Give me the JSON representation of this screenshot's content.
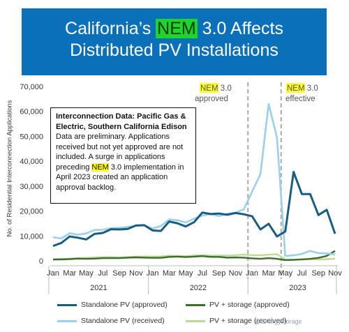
{
  "banner": {
    "line1_pre": "California’s ",
    "line1_hl": "NEM",
    "line1_post": " 3.0 Affects",
    "line2": "Distributed PV Installations"
  },
  "callout": {
    "title": "Interconnection Data: Pacific Gas & Electric, Southern California Edison",
    "body1": "Data are preliminary. Applications received but not yet approved are not included. A surge in applications preceding ",
    "body_hl": "NEM",
    "body2": " 3.0 implementation in April 2023 created an application approval backlog."
  },
  "annotations": {
    "approved_hl": "NEM",
    "approved_rest": " 3.0",
    "approved_label": "approved",
    "effective_hl": "NEM",
    "effective_rest": " 3.0",
    "effective_label": "effective"
  },
  "watermark": "@Energystorage",
  "colors": {
    "standalone_approved": "#1b5c84",
    "standalone_received": "#9bd0ea",
    "storage_approved": "#3b6e28",
    "storage_received": "#b9dc96",
    "banner": "#0b70ba",
    "highlight": "#ffff2a"
  },
  "chart_data": {
    "type": "line",
    "ylabel": "No. of Residential Interconnection Applications",
    "ylim": [
      0,
      70000
    ],
    "yticks": [
      "0",
      "10,000",
      "20,000",
      "30,000",
      "40,000",
      "50,000",
      "60,000",
      "70,000"
    ],
    "ytick_values": [
      0,
      10000,
      20000,
      30000,
      40000,
      50000,
      60000,
      70000
    ],
    "x_tick_labels": [
      "Jan",
      "Mar",
      "May",
      "Jul",
      "Sep",
      "Nov",
      "Jan",
      "Mar",
      "May",
      "Jul",
      "Sep",
      "Nov",
      "Jan",
      "Mar",
      "May",
      "Jul",
      "Sep",
      "Nov"
    ],
    "x_tick_months": [
      0,
      2,
      4,
      6,
      8,
      10,
      12,
      14,
      16,
      18,
      20,
      22,
      24,
      26,
      28,
      30,
      32,
      34
    ],
    "years": [
      "2021",
      "2022",
      "2023"
    ],
    "months": [
      "Jan 2021",
      "Feb 2021",
      "Mar 2021",
      "Apr 2021",
      "May 2021",
      "Jun 2021",
      "Jul 2021",
      "Aug 2021",
      "Sep 2021",
      "Oct 2021",
      "Nov 2021",
      "Dec 2021",
      "Jan 2022",
      "Feb 2022",
      "Mar 2022",
      "Apr 2022",
      "May 2022",
      "Jun 2022",
      "Jul 2022",
      "Aug 2022",
      "Sep 2022",
      "Oct 2022",
      "Nov 2022",
      "Dec 2022",
      "Jan 2023",
      "Feb 2023",
      "Mar 2023",
      "Apr 2023",
      "May 2023",
      "Jun 2023",
      "Jul 2023",
      "Aug 2023",
      "Sep 2023",
      "Oct 2023",
      "Nov 2023"
    ],
    "grid": false,
    "legend_placement": "bottom",
    "vlines": [
      {
        "month": "Dec 2022",
        "label": "NEM 3.0 approved"
      },
      {
        "month": "Apr 2023",
        "label": "NEM 3.0 effective"
      }
    ],
    "series": [
      {
        "name": "Standalone PV (approved)",
        "values": [
          6000,
          7200,
          9800,
          9300,
          8600,
          10800,
          11200,
          12700,
          12600,
          12800,
          14200,
          14300,
          12200,
          12000,
          15800,
          15100,
          13800,
          15500,
          19400,
          18800,
          19000,
          18500,
          19200,
          18700,
          17900,
          12600,
          14900,
          9800,
          11800,
          35700,
          26800,
          26800,
          18400,
          20500,
          10900
        ]
      },
      {
        "name": "Standalone PV (received)",
        "values": [
          9500,
          9000,
          11100,
          10500,
          11000,
          12400,
          12500,
          13100,
          13300,
          13600,
          14000,
          14300,
          13000,
          14000,
          16600,
          16300,
          15400,
          16900,
          18200,
          18800,
          18000,
          18900,
          19300,
          20700,
          27800,
          34800,
          63000,
          49500,
          2000,
          2200,
          2800,
          4000,
          3100,
          3000,
          2600
        ]
      },
      {
        "name": "PV + storage (approved)",
        "values": [
          500,
          600,
          700,
          900,
          800,
          900,
          1100,
          1100,
          1100,
          1300,
          1400,
          1300,
          1200,
          1200,
          1600,
          1700,
          1500,
          1700,
          1900,
          1600,
          1600,
          1300,
          1400,
          1300,
          1000,
          800,
          1100,
          800,
          300,
          400,
          600,
          800,
          1200,
          2000,
          4000
        ]
      },
      {
        "name": "PV + storage (received)",
        "values": [
          700,
          800,
          900,
          1100,
          1200,
          1400,
          1500,
          1500,
          1400,
          1500,
          1700,
          1800,
          1700,
          1800,
          2100,
          2000,
          1900,
          2100,
          2300,
          2100,
          2100,
          2100,
          2300,
          2500,
          2300,
          2200,
          2500,
          2700,
          600,
          500,
          600,
          700,
          600,
          700,
          800
        ]
      }
    ]
  }
}
